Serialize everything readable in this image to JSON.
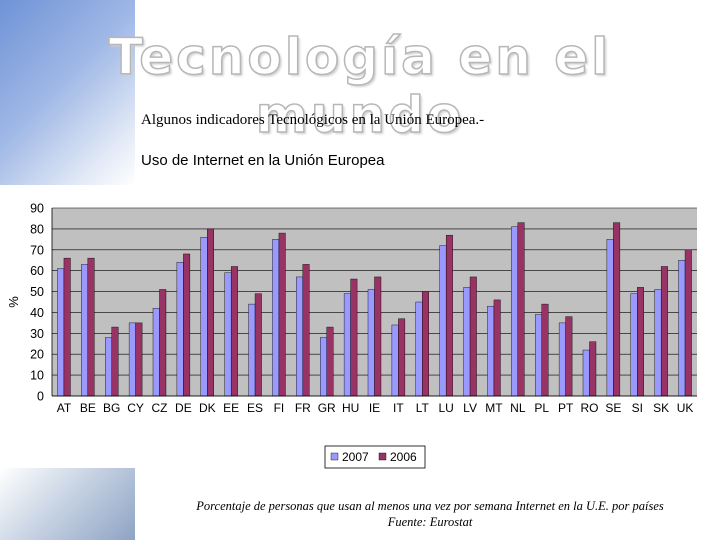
{
  "slide": {
    "title": "Tecnología en el mundo",
    "subtitle": "Algunos indicadores Tecnológicos en la Unión Europea.-",
    "chart_heading": "Uso de Internet en la Unión Europea",
    "caption_line1": "Porcentaje de personas que usan al menos una vez por semana Internet en la U.E. por países",
    "caption_line2": "Fuente: Eurostat"
  },
  "colors": {
    "series_2007": "#9999ff",
    "series_2006": "#993366",
    "plot_bg": "#c0c0c0"
  },
  "chart_data": {
    "type": "bar",
    "title": "",
    "xlabel": "",
    "ylabel": "%",
    "ylim": [
      0,
      90
    ],
    "yticks": [
      0,
      10,
      20,
      30,
      40,
      50,
      60,
      70,
      80,
      90
    ],
    "grid": true,
    "legend_position": "bottom",
    "categories": [
      "AT",
      "BE",
      "BG",
      "CY",
      "CZ",
      "DE",
      "DK",
      "EE",
      "ES",
      "FI",
      "FR",
      "GR",
      "HU",
      "IE",
      "IT",
      "LT",
      "LU",
      "LV",
      "MT",
      "NL",
      "PL",
      "PT",
      "RO",
      "SE",
      "SI",
      "SK",
      "UK"
    ],
    "series": [
      {
        "name": "2007",
        "values": [
          61,
          63,
          28,
          35,
          42,
          64,
          76,
          59,
          44,
          75,
          57,
          28,
          49,
          51,
          34,
          45,
          72,
          52,
          43,
          81,
          39,
          35,
          22,
          75,
          49,
          51,
          65
        ]
      },
      {
        "name": "2006",
        "values": [
          66,
          66,
          33,
          35,
          51,
          68,
          80,
          62,
          49,
          78,
          63,
          33,
          56,
          57,
          37,
          50,
          77,
          57,
          46,
          83,
          44,
          38,
          26,
          83,
          52,
          62,
          70
        ]
      }
    ]
  }
}
